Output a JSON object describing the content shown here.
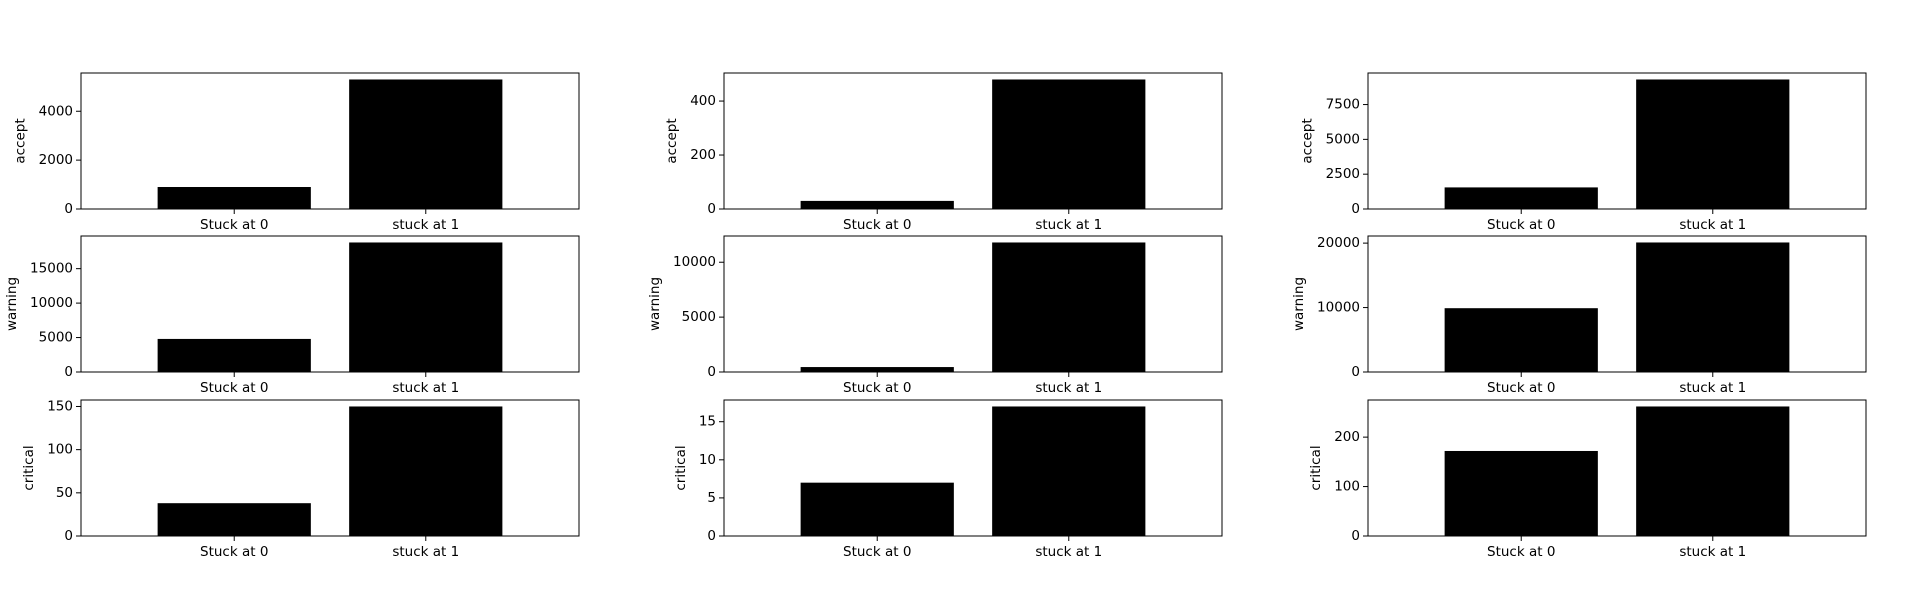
{
  "chart_data": [
    {
      "type": "bar",
      "row": 0,
      "col": 0,
      "categories": [
        "Stuck at 0",
        "stuck at 1"
      ],
      "values": [
        900,
        5300
      ],
      "ylabel": "accept",
      "ylim": [
        0,
        5565
      ],
      "yticks": [
        0,
        2000,
        4000
      ],
      "ytick_labels": [
        "0",
        "2000",
        "4000"
      ],
      "bar_color": "#000000"
    },
    {
      "type": "bar",
      "row": 0,
      "col": 1,
      "categories": [
        "Stuck at 0",
        "stuck at 1"
      ],
      "values": [
        30,
        480
      ],
      "ylabel": "accept",
      "ylim": [
        0,
        504
      ],
      "yticks": [
        0,
        200,
        400
      ],
      "ytick_labels": [
        "0",
        "200",
        "400"
      ],
      "bar_color": "#000000"
    },
    {
      "type": "bar",
      "row": 0,
      "col": 2,
      "categories": [
        "Stuck at 0",
        "stuck at 1"
      ],
      "values": [
        1550,
        9300
      ],
      "ylabel": "accept",
      "ylim": [
        0,
        9765
      ],
      "yticks": [
        0,
        2500,
        5000,
        7500
      ],
      "ytick_labels": [
        "0",
        "2500",
        "5000",
        "7500"
      ],
      "bar_color": "#000000"
    },
    {
      "type": "bar",
      "row": 1,
      "col": 0,
      "categories": [
        "Stuck at 0",
        "stuck at 1"
      ],
      "values": [
        4800,
        18800
      ],
      "ylabel": "warning",
      "ylim": [
        0,
        19740
      ],
      "yticks": [
        0,
        5000,
        10000,
        15000
      ],
      "ytick_labels": [
        "0",
        "5000",
        "10000",
        "15000"
      ],
      "bar_color": "#000000"
    },
    {
      "type": "bar",
      "row": 1,
      "col": 1,
      "categories": [
        "Stuck at 0",
        "stuck at 1"
      ],
      "values": [
        450,
        11800
      ],
      "ylabel": "warning",
      "ylim": [
        0,
        12390
      ],
      "yticks": [
        0,
        5000,
        10000
      ],
      "ytick_labels": [
        "0",
        "5000",
        "10000"
      ],
      "bar_color": "#000000"
    },
    {
      "type": "bar",
      "row": 1,
      "col": 2,
      "categories": [
        "Stuck at 0",
        "stuck at 1"
      ],
      "values": [
        9900,
        20100
      ],
      "ylabel": "warning",
      "ylim": [
        0,
        21105
      ],
      "yticks": [
        0,
        10000,
        20000
      ],
      "ytick_labels": [
        "0",
        "10000",
        "20000"
      ],
      "bar_color": "#000000"
    },
    {
      "type": "bar",
      "row": 2,
      "col": 0,
      "categories": [
        "Stuck at 0",
        "stuck at 1"
      ],
      "values": [
        38,
        150
      ],
      "ylabel": "critical",
      "ylim": [
        0,
        157.5
      ],
      "yticks": [
        0,
        50,
        100,
        150
      ],
      "ytick_labels": [
        "0",
        "50",
        "100",
        "150"
      ],
      "bar_color": "#000000"
    },
    {
      "type": "bar",
      "row": 2,
      "col": 1,
      "categories": [
        "Stuck at 0",
        "stuck at 1"
      ],
      "values": [
        7,
        17
      ],
      "ylabel": "critical",
      "ylim": [
        0,
        17.85
      ],
      "yticks": [
        0,
        5,
        10,
        15
      ],
      "ytick_labels": [
        "0",
        "5",
        "10",
        "15"
      ],
      "bar_color": "#000000"
    },
    {
      "type": "bar",
      "row": 2,
      "col": 2,
      "categories": [
        "Stuck at 0",
        "stuck at 1"
      ],
      "values": [
        172,
        262
      ],
      "ylabel": "critical",
      "ylim": [
        0,
        275.1
      ],
      "yticks": [
        0,
        100,
        200
      ],
      "ytick_labels": [
        "0",
        "100",
        "200"
      ],
      "bar_color": "#000000"
    }
  ]
}
